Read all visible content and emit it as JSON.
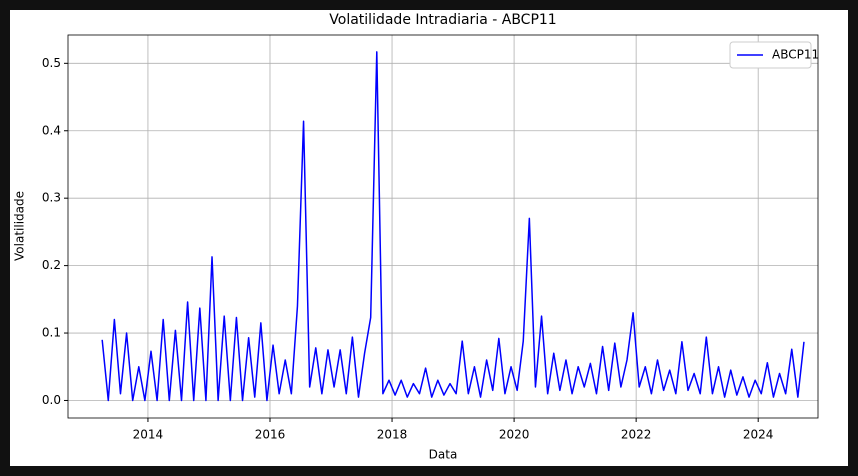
{
  "chart_data": {
    "type": "line",
    "title": "Volatilidade Intradiaria - ABCP11",
    "xlabel": "Data",
    "ylabel": "Volatilidade",
    "x": [
      2013.25,
      2013.35,
      2013.45,
      2013.55,
      2013.65,
      2013.75,
      2013.85,
      2013.95,
      2014.05,
      2014.15,
      2014.25,
      2014.35,
      2014.45,
      2014.55,
      2014.65,
      2014.75,
      2014.85,
      2014.95,
      2015.05,
      2015.15,
      2015.25,
      2015.35,
      2015.45,
      2015.55,
      2015.65,
      2015.75,
      2015.85,
      2015.95,
      2016.05,
      2016.15,
      2016.25,
      2016.35,
      2016.45,
      2016.55,
      2016.65,
      2016.75,
      2016.85,
      2016.95,
      2017.05,
      2017.15,
      2017.25,
      2017.35,
      2017.45,
      2017.55,
      2017.65,
      2017.75,
      2017.85,
      2017.95,
      2018.05,
      2018.15,
      2018.25,
      2018.35,
      2018.45,
      2018.55,
      2018.65,
      2018.75,
      2018.85,
      2018.95,
      2019.05,
      2019.15,
      2019.25,
      2019.35,
      2019.45,
      2019.55,
      2019.65,
      2019.75,
      2019.85,
      2019.95,
      2020.05,
      2020.15,
      2020.25,
      2020.35,
      2020.45,
      2020.55,
      2020.65,
      2020.75,
      2020.85,
      2020.95,
      2021.05,
      2021.15,
      2021.25,
      2021.35,
      2021.45,
      2021.55,
      2021.65,
      2021.75,
      2021.85,
      2021.95,
      2022.05,
      2022.15,
      2022.25,
      2022.35,
      2022.45,
      2022.55,
      2022.65,
      2022.75,
      2022.85,
      2022.95,
      2023.05,
      2023.15,
      2023.25,
      2023.35,
      2023.45,
      2023.55,
      2023.65,
      2023.75,
      2023.85,
      2023.95,
      2024.05,
      2024.15,
      2024.25,
      2024.35,
      2024.45,
      2024.55,
      2024.65,
      2024.75
    ],
    "series": [
      {
        "name": "ABCP11",
        "color": "#0000ff",
        "values": [
          0.09,
          0.0,
          0.12,
          0.01,
          0.1,
          0.0,
          0.05,
          0.0,
          0.073,
          0.0,
          0.12,
          0.0,
          0.104,
          0.0,
          0.146,
          0.0,
          0.137,
          0.0,
          0.213,
          0.0,
          0.125,
          0.0,
          0.123,
          0.0,
          0.093,
          0.005,
          0.115,
          0.0,
          0.082,
          0.01,
          0.06,
          0.01,
          0.14,
          0.414,
          0.02,
          0.078,
          0.01,
          0.075,
          0.02,
          0.075,
          0.01,
          0.094,
          0.005,
          0.07,
          0.123,
          0.517,
          0.01,
          0.03,
          0.008,
          0.03,
          0.005,
          0.025,
          0.01,
          0.048,
          0.005,
          0.03,
          0.008,
          0.025,
          0.01,
          0.088,
          0.01,
          0.05,
          0.005,
          0.06,
          0.015,
          0.092,
          0.01,
          0.05,
          0.015,
          0.088,
          0.27,
          0.02,
          0.125,
          0.01,
          0.07,
          0.015,
          0.06,
          0.01,
          0.05,
          0.02,
          0.055,
          0.01,
          0.08,
          0.015,
          0.085,
          0.02,
          0.06,
          0.13,
          0.02,
          0.05,
          0.01,
          0.06,
          0.015,
          0.045,
          0.01,
          0.087,
          0.015,
          0.04,
          0.01,
          0.094,
          0.01,
          0.05,
          0.005,
          0.045,
          0.008,
          0.035,
          0.005,
          0.03,
          0.01,
          0.056,
          0.005,
          0.04,
          0.01,
          0.076,
          0.005,
          0.087
        ]
      }
    ],
    "xlim": [
      2012.69,
      2024.98
    ],
    "xticks": [
      2014,
      2016,
      2018,
      2020,
      2022,
      2024
    ],
    "ylim": [
      -0.026,
      0.542
    ],
    "yticks": [
      {
        "value": 0,
        "label": "0.0"
      },
      0.1,
      0.2,
      0.3,
      0.4,
      0.5
    ],
    "grid": true,
    "legend": "upper right"
  }
}
